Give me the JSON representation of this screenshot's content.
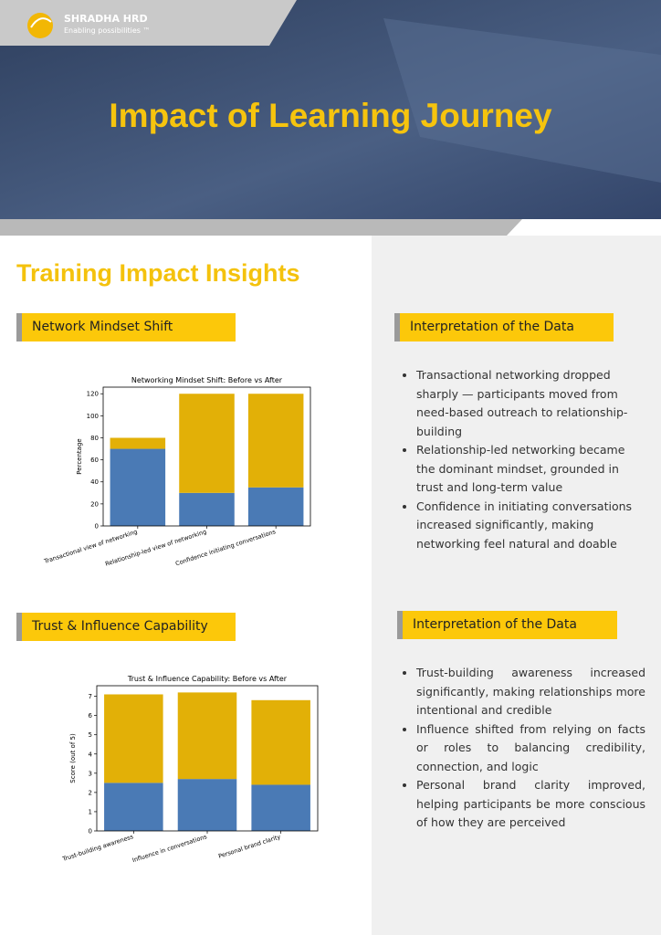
{
  "header": {
    "brand": "SHRADHA HRD",
    "tagline": "Enabling possibilities ™",
    "title": "Impact of Learning Journey"
  },
  "section_title": "Training Impact Insights",
  "panels": [
    {
      "label": "Network Mindset Shift",
      "interpretation_label": "Interpretation of the Data",
      "bullets": [
        "Transactional networking dropped sharply — participants moved from need-based outreach to relationship-building",
        "Relationship-led networking became the dominant mindset, grounded in trust and long-term value",
        "Confidence in initiating conversations increased significantly, making networking feel natural and doable"
      ]
    },
    {
      "label": "Trust & Influence Capability",
      "interpretation_label": "Interpretation of the Data",
      "bullets": [
        "Trust-building awareness increased significantly, making relationships more intentional and credible",
        "Influence shifted from relying on facts or roles to balancing credibility, connection, and logic",
        "Personal brand clarity improved, helping participants be more conscious of how they are perceived"
      ]
    }
  ],
  "chart_data": [
    {
      "type": "stacked_bar",
      "title": "Networking Mindset Shift: Before vs After",
      "ylabel": "Percentage",
      "categories": [
        "Transactional view of networking",
        "Relationship-led view of networking",
        "Confidence initiating conversations"
      ],
      "series": [
        {
          "color": "#4a7ab5",
          "values": [
            70,
            30,
            35
          ]
        },
        {
          "color": "#e2b007",
          "values": [
            10,
            90,
            85
          ]
        }
      ],
      "ylim": [
        0,
        126
      ],
      "yticks": [
        0,
        20,
        40,
        60,
        80,
        100,
        120
      ]
    },
    {
      "type": "stacked_bar",
      "title": "Trust & Influence Capability: Before vs After",
      "ylabel": "Score (out of 5)",
      "categories": [
        "Trust-building awareness",
        "Influence in conversations",
        "Personal brand clarity"
      ],
      "series": [
        {
          "color": "#4a7ab5",
          "values": [
            2.5,
            2.7,
            2.4
          ]
        },
        {
          "color": "#e2b007",
          "values": [
            4.6,
            4.5,
            4.4
          ]
        }
      ],
      "ylim": [
        0,
        7.55
      ],
      "yticks": [
        0,
        1,
        2,
        3,
        4,
        5,
        6,
        7
      ]
    }
  ]
}
